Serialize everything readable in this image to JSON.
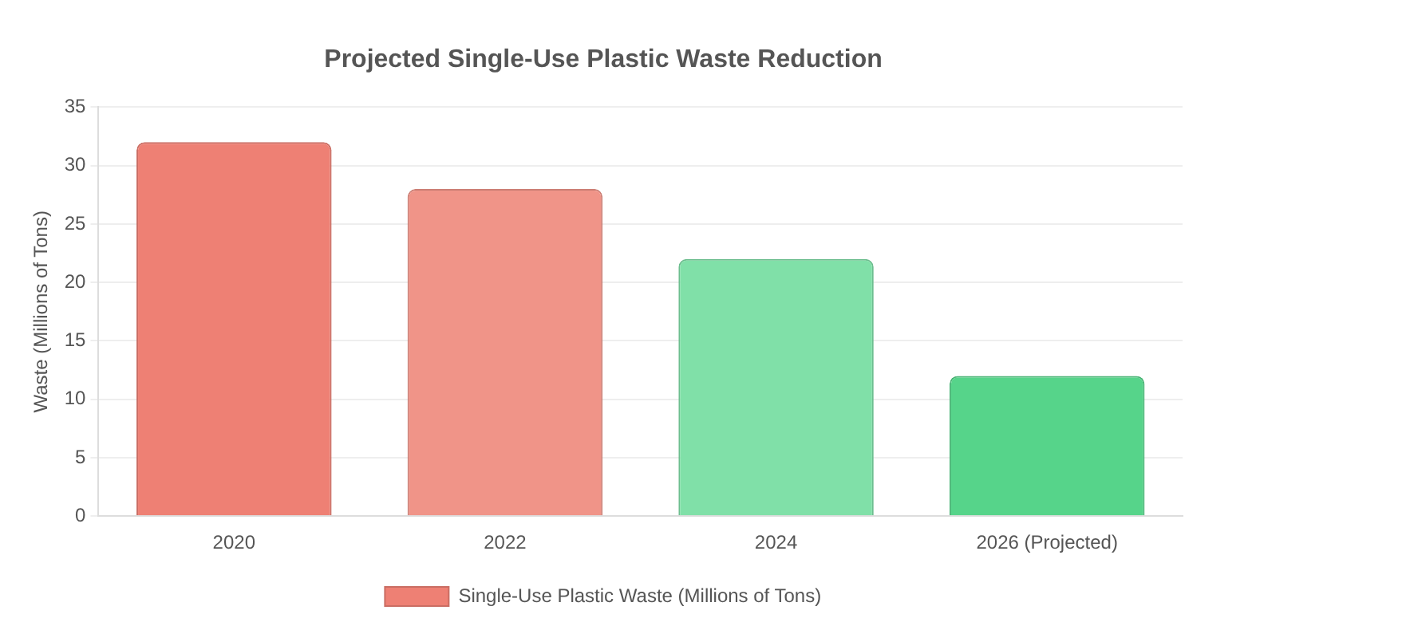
{
  "chart_data": {
    "type": "bar",
    "title": "Projected Single-Use Plastic Waste Reduction",
    "ylabel": "Waste (Millions of Tons)",
    "categories": [
      "2020",
      "2022",
      "2024",
      "2026 (Projected)"
    ],
    "series": [
      {
        "name": "Single-Use Plastic Waste (Millions of Tons)",
        "colors": [
          "#ee8074",
          "#f09488",
          "#80e0a8",
          "#56d48a"
        ],
        "values": [
          32,
          28,
          22,
          12
        ]
      }
    ],
    "ylim": [
      0,
      35
    ],
    "yticks": [
      0,
      5,
      10,
      15,
      20,
      25,
      30,
      35
    ],
    "grid": "y",
    "legend": "bottom"
  }
}
